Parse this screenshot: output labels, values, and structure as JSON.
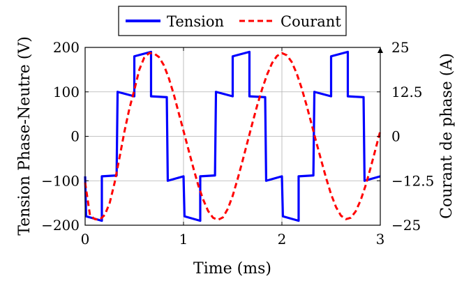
{
  "chart_data": {
    "type": "line",
    "title": "",
    "xlabel": "Time (ms)",
    "ylabel_left": "Tension Phase-Neutre (V)",
    "ylabel_right": "Courant de phase (A)",
    "xlim": [
      0,
      3
    ],
    "ylim_left": [
      -200,
      200
    ],
    "ylim_right": [
      -25,
      25
    ],
    "x_ticks": [
      "0",
      "1",
      "2",
      "3"
    ],
    "y_ticks_left": [
      "−200",
      "−100",
      "0",
      "100",
      "200"
    ],
    "y_ticks_right": [
      "−25",
      "−12.5",
      "0",
      "12.5",
      "25"
    ],
    "grid": true,
    "legend_position": "top-center",
    "series": [
      {
        "name": "Tension",
        "axis": "left",
        "color": "#0000ff",
        "style": "solid",
        "x": [
          0,
          0.01,
          0.17,
          0.17,
          0.32,
          0.33,
          0.5,
          0.5,
          0.67,
          0.67,
          0.83,
          0.84,
          1.0,
          1.01,
          1.17,
          1.17,
          1.32,
          1.33,
          1.5,
          1.5,
          1.67,
          1.67,
          1.83,
          1.84,
          2.0,
          2.01,
          2.17,
          2.17,
          2.32,
          2.33,
          2.5,
          2.5,
          2.67,
          2.67,
          2.83,
          2.84,
          3.0
        ],
        "values": [
          -90,
          -180,
          -190,
          -90,
          -88,
          100,
          90,
          180,
          190,
          90,
          88,
          -100,
          -90,
          -180,
          -190,
          -90,
          -88,
          100,
          90,
          180,
          190,
          90,
          88,
          -100,
          -90,
          -180,
          -190,
          -90,
          -88,
          100,
          90,
          180,
          190,
          90,
          88,
          -100,
          -90
        ]
      },
      {
        "name": "Courant",
        "axis": "right",
        "color": "#ff0000",
        "style": "dashed",
        "x": [
          0.0,
          0.05,
          0.1,
          0.15,
          0.2,
          0.25,
          0.3,
          0.35,
          0.4,
          0.45,
          0.5,
          0.55,
          0.6,
          0.65,
          0.7,
          0.75,
          0.8,
          0.85,
          0.9,
          0.95,
          1.0,
          1.05,
          1.1,
          1.15,
          1.2,
          1.25,
          1.3,
          1.35,
          1.4,
          1.45,
          1.5,
          1.55,
          1.6,
          1.65,
          1.7,
          1.75,
          1.8,
          1.85,
          1.9,
          1.95,
          2.0,
          2.05,
          2.1,
          2.15,
          2.2,
          2.25,
          2.3,
          2.35,
          2.4,
          2.45,
          2.5,
          2.55,
          2.6,
          2.65,
          2.7,
          2.75,
          2.8,
          2.85,
          2.9,
          2.95,
          3.0
        ],
        "values": [
          -13,
          -22.3,
          -23.3,
          -23.4,
          -22.1,
          -18.7,
          -13.0,
          -5.9,
          1.4,
          7.8,
          13.0,
          18.7,
          22.1,
          23.4,
          23.3,
          22.3,
          20.0,
          16.4,
          11.9,
          6.7,
          1.5,
          -3.7,
          -8.9,
          -13.8,
          -17.8,
          -21.0,
          -22.9,
          -23.5,
          -22.8,
          -20.4,
          -16.7,
          -12.0,
          -6.9,
          -1.6,
          3.7,
          8.8,
          13.4,
          17.4,
          20.6,
          22.6,
          23.4,
          22.8,
          20.9,
          17.7,
          13.6,
          8.8,
          3.6,
          -1.7,
          -6.8,
          -11.8,
          -16.3,
          -19.9,
          -22.3,
          -23.3,
          -22.9,
          -21.1,
          -18.0,
          -13.9,
          -9.0,
          -3.8,
          1.5
        ]
      }
    ]
  }
}
